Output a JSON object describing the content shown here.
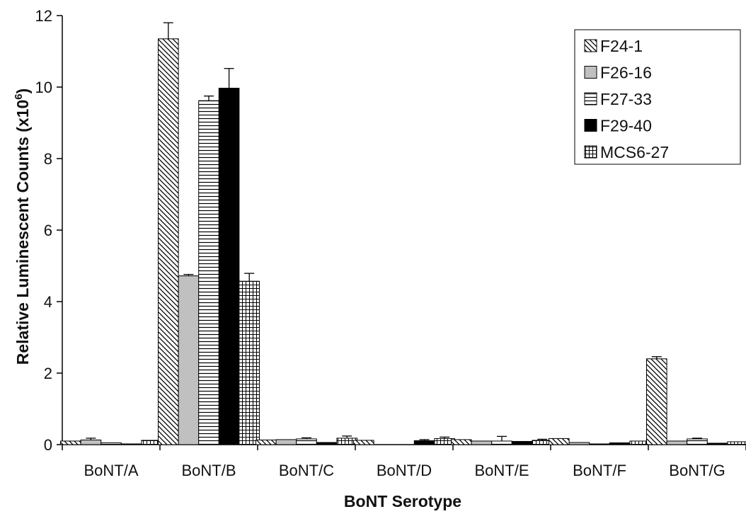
{
  "chart_data": {
    "type": "bar",
    "xlabel": "BoNT Serotype",
    "ylabel_main": "Relative Luminescent Counts (x10",
    "ylabel_exp": "6",
    "ylabel_close": ")",
    "ylim": [
      0,
      12
    ],
    "yticks": [
      "0",
      "2",
      "4",
      "6",
      "8",
      "10",
      "12"
    ],
    "ytick_values": [
      0,
      2,
      4,
      6,
      8,
      10,
      12
    ],
    "grid": false,
    "legend_position": "top-right",
    "categories": [
      "BoNT/A",
      "BoNT/B",
      "BoNT/C",
      "BoNT/D",
      "BoNT/E",
      "BoNT/F",
      "BoNT/G"
    ],
    "series": [
      {
        "name": "F24-1",
        "pattern": "diagonal",
        "values": [
          0.1,
          11.35,
          0.13,
          0.12,
          0.14,
          0.17,
          2.4
        ],
        "errors": [
          0.0,
          0.45,
          0.0,
          0.0,
          0.0,
          0.0,
          0.06
        ]
      },
      {
        "name": "F26-16",
        "pattern": "gray",
        "values": [
          0.13,
          4.72,
          0.14,
          0.0,
          0.1,
          0.06,
          0.1
        ],
        "errors": [
          0.05,
          0.04,
          0.0,
          0.0,
          0.0,
          0.0,
          0.0
        ]
      },
      {
        "name": "F27-33",
        "pattern": "horizontal",
        "values": [
          0.05,
          9.62,
          0.16,
          0.0,
          0.1,
          0.02,
          0.16
        ],
        "errors": [
          0.0,
          0.13,
          0.03,
          0.0,
          0.13,
          0.0,
          0.02
        ]
      },
      {
        "name": "F29-40",
        "pattern": "black",
        "values": [
          0.02,
          9.97,
          0.06,
          0.11,
          0.09,
          0.05,
          0.04
        ],
        "errors": [
          0.0,
          0.55,
          0.0,
          0.03,
          0.0,
          0.0,
          0.0
        ]
      },
      {
        "name": "MCS6-27",
        "pattern": "grid",
        "values": [
          0.12,
          4.57,
          0.18,
          0.17,
          0.12,
          0.1,
          0.08
        ],
        "errors": [
          0.0,
          0.22,
          0.06,
          0.04,
          0.03,
          0.0,
          0.0
        ]
      }
    ]
  }
}
